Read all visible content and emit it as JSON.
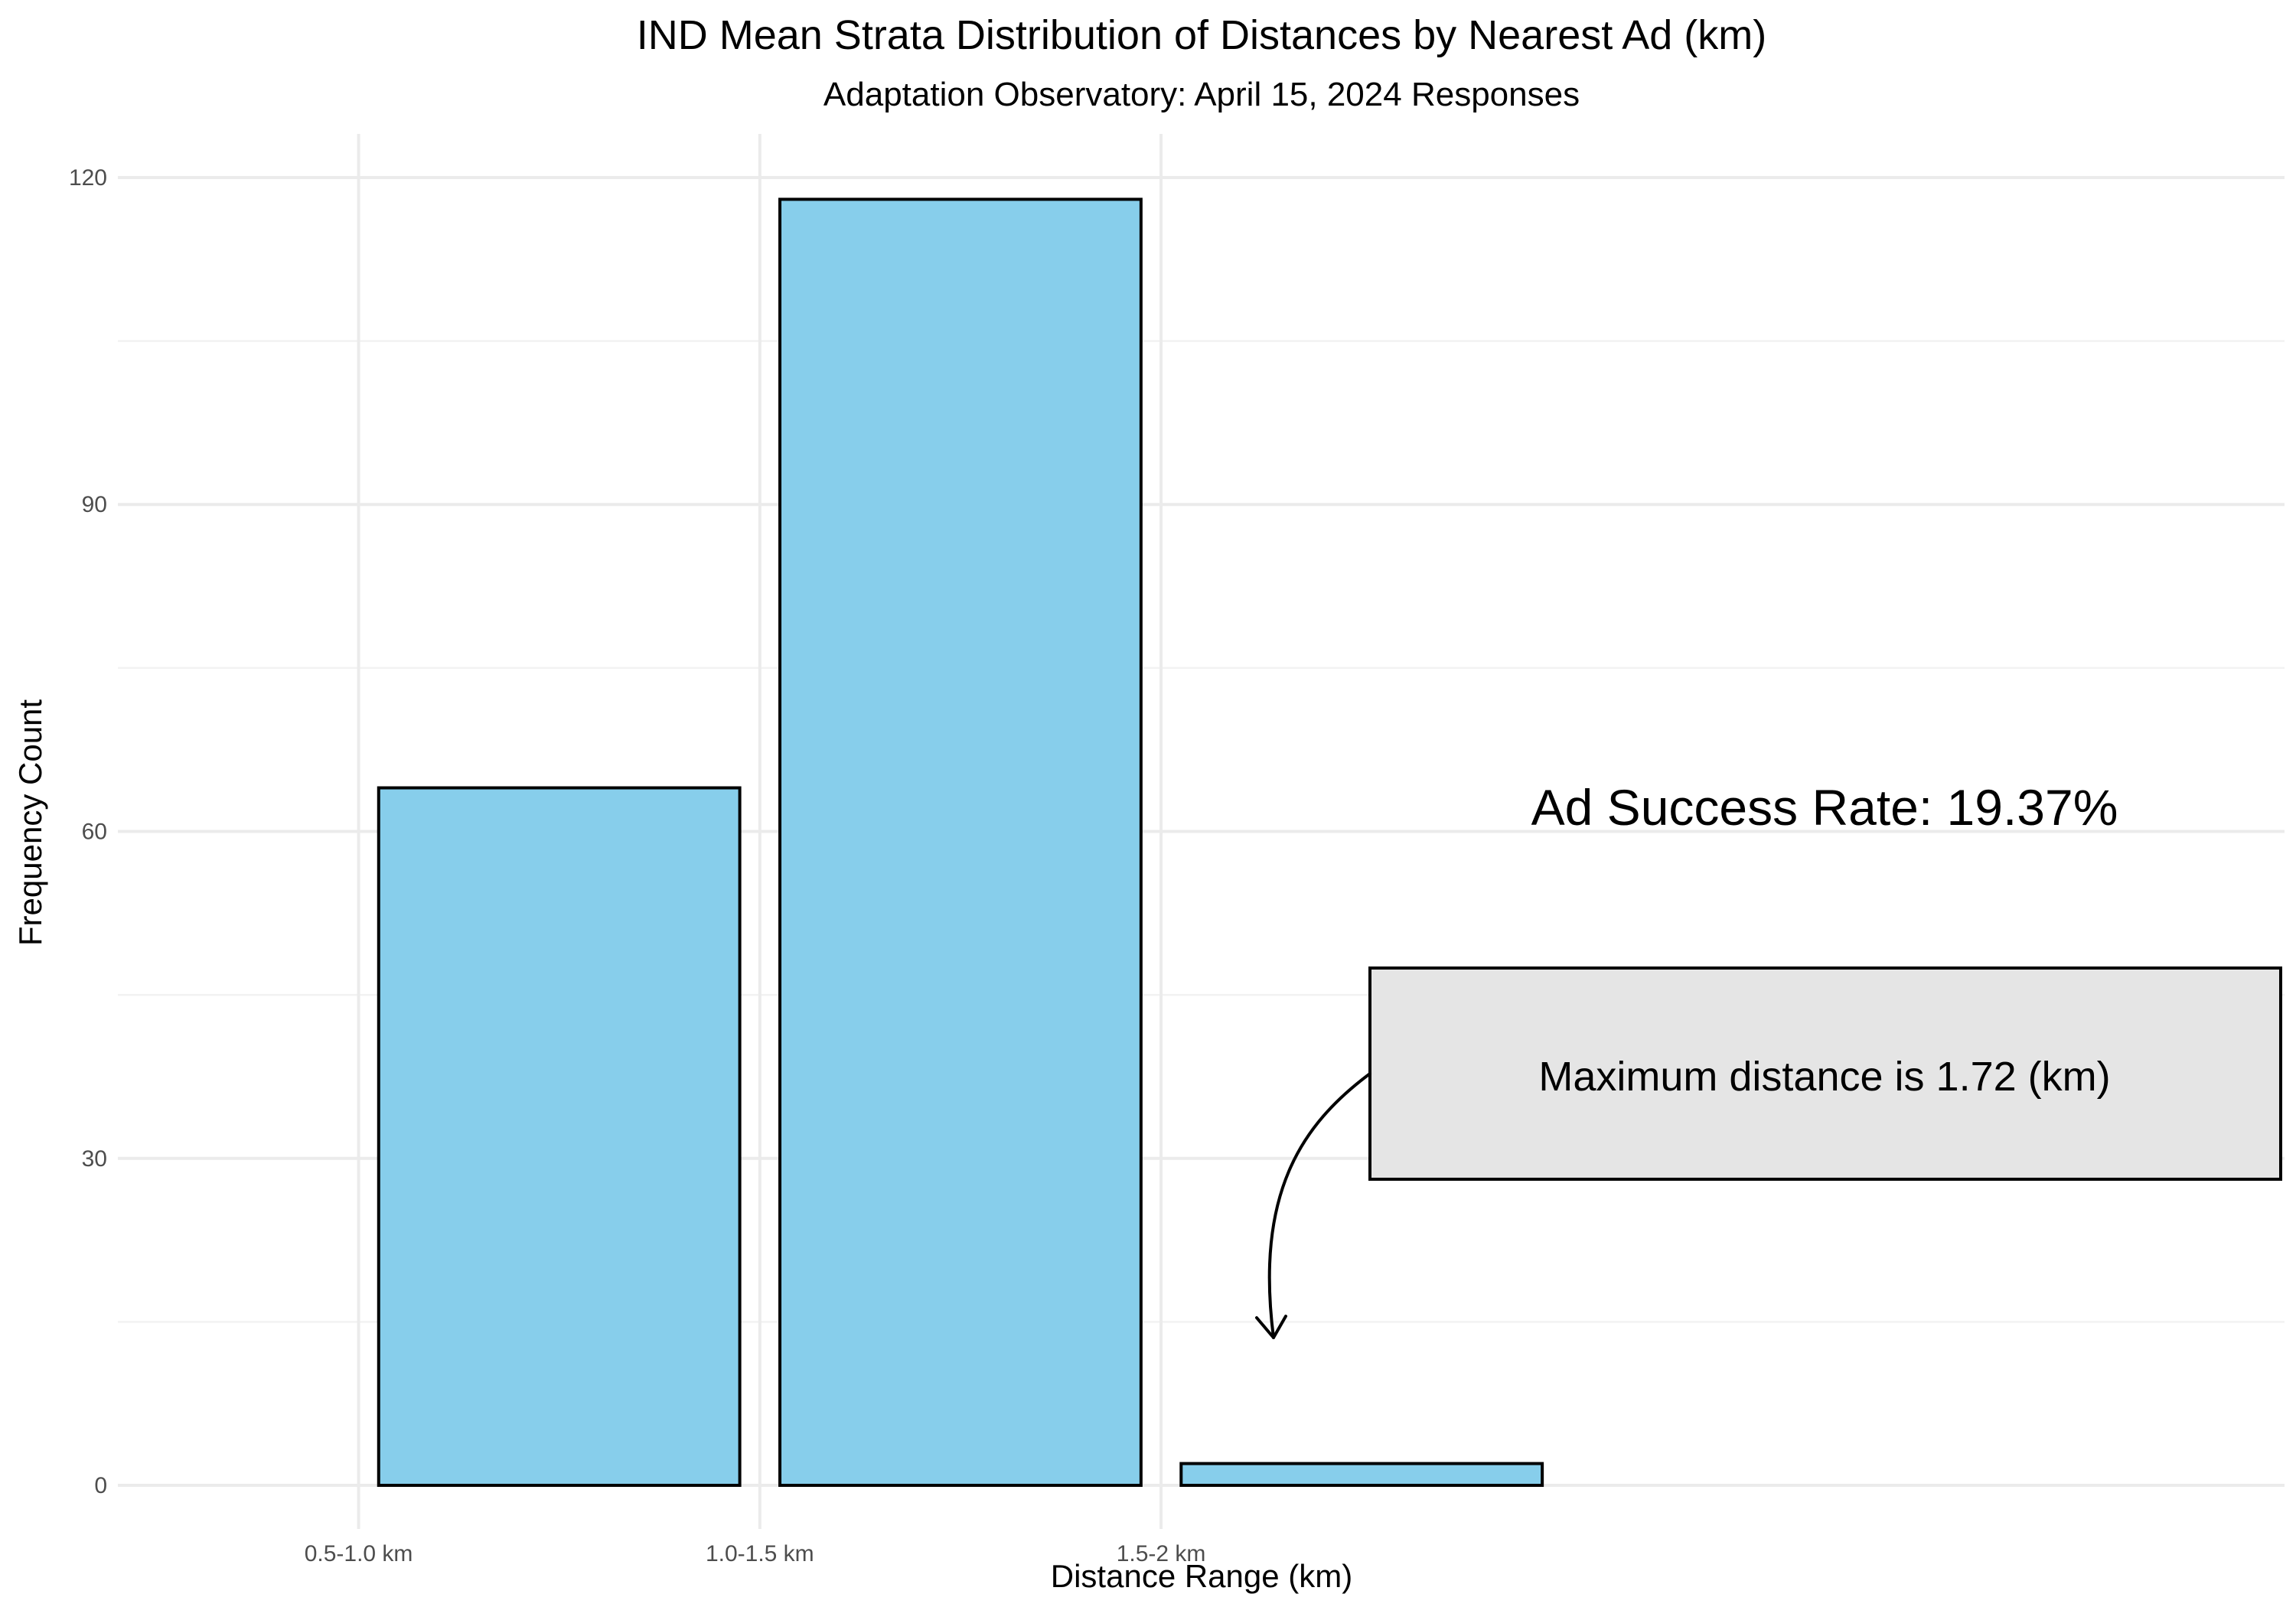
{
  "chart_data": {
    "type": "bar",
    "title": "IND Mean Strata Distribution of Distances by Nearest Ad (km)",
    "subtitle": "Adaptation Observatory: April 15, 2024 Responses",
    "xlabel": "Distance Range (km)",
    "ylabel": "Frequency Count",
    "categories": [
      "0.5-1.0 km",
      "1.0-1.5 km",
      "1.5-2 km"
    ],
    "values": [
      64,
      118,
      2
    ],
    "ylim": [
      -4,
      124
    ],
    "yticks": [
      0,
      30,
      60,
      90,
      120
    ],
    "grid": true,
    "colors": {
      "bar_fill": "#87CEEB",
      "bar_stroke": "#000000",
      "box_fill": "#e5e5e5"
    },
    "annotations": {
      "success_rate": "Ad Success Rate: 19.37%",
      "max_distance": "Maximum distance is 1.72 (km)"
    }
  }
}
